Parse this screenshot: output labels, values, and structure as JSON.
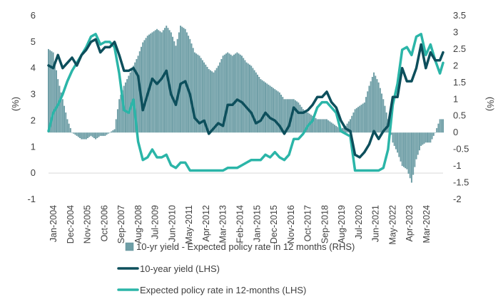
{
  "chart_data": {
    "type": "bar+line",
    "title": "",
    "ylabel_left": "(%)",
    "ylabel_right": "(%)",
    "ylim_left": [
      -1,
      6
    ],
    "ylim_right": [
      -2,
      3.5
    ],
    "yticks_left": [
      "-1",
      "0",
      "1",
      "2",
      "3",
      "4",
      "5",
      "6"
    ],
    "yticks_right": [
      "-2",
      "-1.5",
      "-1",
      "-0.5",
      "0",
      "0.5",
      "1",
      "1.5",
      "2",
      "2.5",
      "3",
      "3.5"
    ],
    "x_tick_labels": [
      "Jan-2004",
      "Dec-2004",
      "Nov-2005",
      "Oct-2006",
      "Sep-2007",
      "Aug-2008",
      "Jul-2009",
      "Jun-2010",
      "May-2011",
      "Apr-2012",
      "Mar-2013",
      "Feb-2014",
      "Jan-2015",
      "Dec-2015",
      "Nov-2016",
      "Oct-2017",
      "Sep-2018",
      "Aug-2019",
      "Jul-2020",
      "Jun-2021",
      "May-2022",
      "Apr-2023",
      "Mar-2024"
    ],
    "x_start": "2004-01",
    "x_end": "2024-12",
    "series": [
      {
        "name": "10-yr yield - Expected policy rate in 12 months (RHS)",
        "type": "bar",
        "axis": "right",
        "color": "#6e9ea6",
        "points": [
          [
            "2004-01",
            2.5
          ],
          [
            "2004-04",
            2.4
          ],
          [
            "2004-07",
            1.6
          ],
          [
            "2004-10",
            1.0
          ],
          [
            "2005-01",
            0.4
          ],
          [
            "2005-04",
            0.0
          ],
          [
            "2005-07",
            -0.1
          ],
          [
            "2005-10",
            -0.2
          ],
          [
            "2006-01",
            -0.2
          ],
          [
            "2006-04",
            -0.1
          ],
          [
            "2006-07",
            -0.2
          ],
          [
            "2006-10",
            -0.1
          ],
          [
            "2007-01",
            -0.1
          ],
          [
            "2007-04",
            0.0
          ],
          [
            "2007-07",
            0.1
          ],
          [
            "2007-10",
            1.0
          ],
          [
            "2008-01",
            1.4
          ],
          [
            "2008-04",
            1.7
          ],
          [
            "2008-07",
            2.0
          ],
          [
            "2008-10",
            2.3
          ],
          [
            "2009-01",
            2.7
          ],
          [
            "2009-04",
            2.9
          ],
          [
            "2009-07",
            3.0
          ],
          [
            "2009-10",
            3.1
          ],
          [
            "2010-01",
            3.0
          ],
          [
            "2010-04",
            3.2
          ],
          [
            "2010-07",
            3.0
          ],
          [
            "2010-10",
            2.6
          ],
          [
            "2011-01",
            3.2
          ],
          [
            "2011-04",
            3.1
          ],
          [
            "2011-07",
            2.8
          ],
          [
            "2011-10",
            2.4
          ],
          [
            "2012-01",
            2.3
          ],
          [
            "2012-04",
            2.1
          ],
          [
            "2012-07",
            1.9
          ],
          [
            "2012-10",
            1.8
          ],
          [
            "2013-01",
            2.0
          ],
          [
            "2013-04",
            2.3
          ],
          [
            "2013-07",
            2.4
          ],
          [
            "2013-10",
            2.3
          ],
          [
            "2014-01",
            2.4
          ],
          [
            "2014-04",
            2.3
          ],
          [
            "2014-07",
            2.1
          ],
          [
            "2014-10",
            2.0
          ],
          [
            "2015-01",
            1.8
          ],
          [
            "2015-04",
            1.6
          ],
          [
            "2015-07",
            1.5
          ],
          [
            "2015-10",
            1.4
          ],
          [
            "2016-01",
            1.3
          ],
          [
            "2016-04",
            1.2
          ],
          [
            "2016-07",
            1.0
          ],
          [
            "2016-10",
            1.0
          ],
          [
            "2017-01",
            1.0
          ],
          [
            "2017-04",
            0.9
          ],
          [
            "2017-07",
            0.7
          ],
          [
            "2017-10",
            0.6
          ],
          [
            "2018-01",
            0.5
          ],
          [
            "2018-04",
            0.4
          ],
          [
            "2018-07",
            0.4
          ],
          [
            "2018-10",
            0.4
          ],
          [
            "2019-01",
            0.3
          ],
          [
            "2019-04",
            0.2
          ],
          [
            "2019-07",
            0.1
          ],
          [
            "2019-10",
            0.2
          ],
          [
            "2020-01",
            0.4
          ],
          [
            "2020-04",
            0.7
          ],
          [
            "2020-07",
            0.8
          ],
          [
            "2020-10",
            0.9
          ],
          [
            "2021-01",
            1.4
          ],
          [
            "2021-04",
            1.8
          ],
          [
            "2021-07",
            1.5
          ],
          [
            "2021-10",
            1.0
          ],
          [
            "2022-01",
            0.4
          ],
          [
            "2022-04",
            -0.3
          ],
          [
            "2022-07",
            -0.6
          ],
          [
            "2022-10",
            -1.0
          ],
          [
            "2023-01",
            -1.1
          ],
          [
            "2023-04",
            -1.5
          ],
          [
            "2023-07",
            -0.8
          ],
          [
            "2023-10",
            -0.4
          ],
          [
            "2024-01",
            -0.3
          ],
          [
            "2024-04",
            -0.3
          ],
          [
            "2024-07",
            0.0
          ],
          [
            "2024-10",
            0.4
          ]
        ]
      },
      {
        "name": "10-year yield (LHS)",
        "type": "line",
        "axis": "left",
        "color": "#0d4f5c",
        "points": [
          [
            "2004-01",
            4.1
          ],
          [
            "2004-04",
            4.0
          ],
          [
            "2004-07",
            4.5
          ],
          [
            "2004-10",
            4.0
          ],
          [
            "2005-01",
            4.2
          ],
          [
            "2005-04",
            4.4
          ],
          [
            "2005-07",
            4.1
          ],
          [
            "2005-10",
            4.5
          ],
          [
            "2006-01",
            4.7
          ],
          [
            "2006-04",
            5.0
          ],
          [
            "2006-07",
            5.1
          ],
          [
            "2006-10",
            4.6
          ],
          [
            "2007-01",
            4.8
          ],
          [
            "2007-04",
            4.8
          ],
          [
            "2007-07",
            5.0
          ],
          [
            "2007-10",
            4.5
          ],
          [
            "2008-01",
            3.9
          ],
          [
            "2008-04",
            3.9
          ],
          [
            "2008-07",
            4.0
          ],
          [
            "2008-10",
            3.7
          ],
          [
            "2009-01",
            2.4
          ],
          [
            "2009-04",
            3.0
          ],
          [
            "2009-07",
            3.6
          ],
          [
            "2009-10",
            3.4
          ],
          [
            "2010-01",
            3.6
          ],
          [
            "2010-04",
            3.9
          ],
          [
            "2010-07",
            3.0
          ],
          [
            "2010-10",
            2.6
          ],
          [
            "2011-01",
            3.4
          ],
          [
            "2011-04",
            3.5
          ],
          [
            "2011-07",
            3.0
          ],
          [
            "2011-10",
            2.1
          ],
          [
            "2012-01",
            1.9
          ],
          [
            "2012-04",
            2.0
          ],
          [
            "2012-07",
            1.5
          ],
          [
            "2012-10",
            1.7
          ],
          [
            "2013-01",
            1.9
          ],
          [
            "2013-04",
            1.8
          ],
          [
            "2013-07",
            2.6
          ],
          [
            "2013-10",
            2.6
          ],
          [
            "2014-01",
            2.8
          ],
          [
            "2014-04",
            2.7
          ],
          [
            "2014-07",
            2.5
          ],
          [
            "2014-10",
            2.3
          ],
          [
            "2015-01",
            1.9
          ],
          [
            "2015-04",
            2.0
          ],
          [
            "2015-07",
            2.3
          ],
          [
            "2015-10",
            2.1
          ],
          [
            "2016-01",
            2.0
          ],
          [
            "2016-04",
            1.8
          ],
          [
            "2016-07",
            1.5
          ],
          [
            "2016-10",
            1.8
          ],
          [
            "2017-01",
            2.5
          ],
          [
            "2017-04",
            2.3
          ],
          [
            "2017-07",
            2.3
          ],
          [
            "2017-10",
            2.4
          ],
          [
            "2018-01",
            2.6
          ],
          [
            "2018-04",
            2.9
          ],
          [
            "2018-07",
            2.9
          ],
          [
            "2018-10",
            3.1
          ],
          [
            "2019-01",
            2.7
          ],
          [
            "2019-04",
            2.5
          ],
          [
            "2019-07",
            2.0
          ],
          [
            "2019-10",
            1.7
          ],
          [
            "2020-01",
            1.6
          ],
          [
            "2020-04",
            0.7
          ],
          [
            "2020-07",
            0.6
          ],
          [
            "2020-10",
            0.8
          ],
          [
            "2021-01",
            1.1
          ],
          [
            "2021-04",
            1.6
          ],
          [
            "2021-07",
            1.3
          ],
          [
            "2021-10",
            1.6
          ],
          [
            "2022-01",
            1.8
          ],
          [
            "2022-04",
            2.9
          ],
          [
            "2022-07",
            2.9
          ],
          [
            "2022-10",
            4.0
          ],
          [
            "2023-01",
            3.5
          ],
          [
            "2023-04",
            3.5
          ],
          [
            "2023-07",
            4.0
          ],
          [
            "2023-10",
            4.9
          ],
          [
            "2024-01",
            4.0
          ],
          [
            "2024-04",
            4.6
          ],
          [
            "2024-07",
            4.3
          ],
          [
            "2024-10",
            4.3
          ],
          [
            "2024-12",
            4.6
          ]
        ]
      },
      {
        "name": "Expected policy rate in 12-months (LHS)",
        "type": "line",
        "axis": "left",
        "color": "#2bb5a8",
        "points": [
          [
            "2004-01",
            1.6
          ],
          [
            "2004-04",
            2.3
          ],
          [
            "2004-07",
            2.6
          ],
          [
            "2004-10",
            3.0
          ],
          [
            "2005-01",
            3.5
          ],
          [
            "2005-04",
            3.9
          ],
          [
            "2005-07",
            4.2
          ],
          [
            "2005-10",
            4.5
          ],
          [
            "2006-01",
            4.8
          ],
          [
            "2006-04",
            5.2
          ],
          [
            "2006-07",
            5.3
          ],
          [
            "2006-10",
            4.9
          ],
          [
            "2007-01",
            5.0
          ],
          [
            "2007-04",
            5.0
          ],
          [
            "2007-07",
            4.8
          ],
          [
            "2007-10",
            3.8
          ],
          [
            "2008-01",
            2.4
          ],
          [
            "2008-04",
            2.3
          ],
          [
            "2008-07",
            2.8
          ],
          [
            "2008-10",
            1.2
          ],
          [
            "2009-01",
            0.5
          ],
          [
            "2009-04",
            0.6
          ],
          [
            "2009-07",
            0.9
          ],
          [
            "2009-10",
            0.6
          ],
          [
            "2010-01",
            0.6
          ],
          [
            "2010-04",
            0.7
          ],
          [
            "2010-07",
            0.3
          ],
          [
            "2010-10",
            0.2
          ],
          [
            "2011-01",
            0.4
          ],
          [
            "2011-04",
            0.4
          ],
          [
            "2011-07",
            0.1
          ],
          [
            "2011-10",
            0.1
          ],
          [
            "2012-01",
            0.1
          ],
          [
            "2012-04",
            0.1
          ],
          [
            "2012-07",
            0.1
          ],
          [
            "2012-10",
            0.1
          ],
          [
            "2013-01",
            0.1
          ],
          [
            "2013-04",
            0.1
          ],
          [
            "2013-07",
            0.2
          ],
          [
            "2013-10",
            0.2
          ],
          [
            "2014-01",
            0.2
          ],
          [
            "2014-04",
            0.3
          ],
          [
            "2014-07",
            0.4
          ],
          [
            "2014-10",
            0.5
          ],
          [
            "2015-01",
            0.5
          ],
          [
            "2015-04",
            0.5
          ],
          [
            "2015-07",
            0.7
          ],
          [
            "2015-10",
            0.6
          ],
          [
            "2016-01",
            0.8
          ],
          [
            "2016-04",
            0.6
          ],
          [
            "2016-07",
            0.5
          ],
          [
            "2016-10",
            0.7
          ],
          [
            "2017-01",
            1.3
          ],
          [
            "2017-04",
            1.3
          ],
          [
            "2017-07",
            1.5
          ],
          [
            "2017-10",
            1.8
          ],
          [
            "2018-01",
            2.0
          ],
          [
            "2018-04",
            2.5
          ],
          [
            "2018-07",
            2.7
          ],
          [
            "2018-10",
            2.7
          ],
          [
            "2019-01",
            2.5
          ],
          [
            "2019-04",
            2.3
          ],
          [
            "2019-07",
            1.6
          ],
          [
            "2019-10",
            1.5
          ],
          [
            "2020-01",
            1.4
          ],
          [
            "2020-04",
            0.1
          ],
          [
            "2020-07",
            0.1
          ],
          [
            "2020-10",
            0.1
          ],
          [
            "2021-01",
            0.1
          ],
          [
            "2021-04",
            0.1
          ],
          [
            "2021-07",
            0.1
          ],
          [
            "2021-10",
            0.2
          ],
          [
            "2022-01",
            0.9
          ],
          [
            "2022-04",
            2.6
          ],
          [
            "2022-07",
            3.4
          ],
          [
            "2022-10",
            4.7
          ],
          [
            "2023-01",
            4.8
          ],
          [
            "2023-04",
            4.5
          ],
          [
            "2023-07",
            5.2
          ],
          [
            "2023-10",
            5.3
          ],
          [
            "2024-01",
            4.5
          ],
          [
            "2024-04",
            4.9
          ],
          [
            "2024-07",
            4.3
          ],
          [
            "2024-10",
            3.8
          ],
          [
            "2024-12",
            4.2
          ]
        ]
      }
    ],
    "legend_position": "bottom",
    "grid": false
  }
}
